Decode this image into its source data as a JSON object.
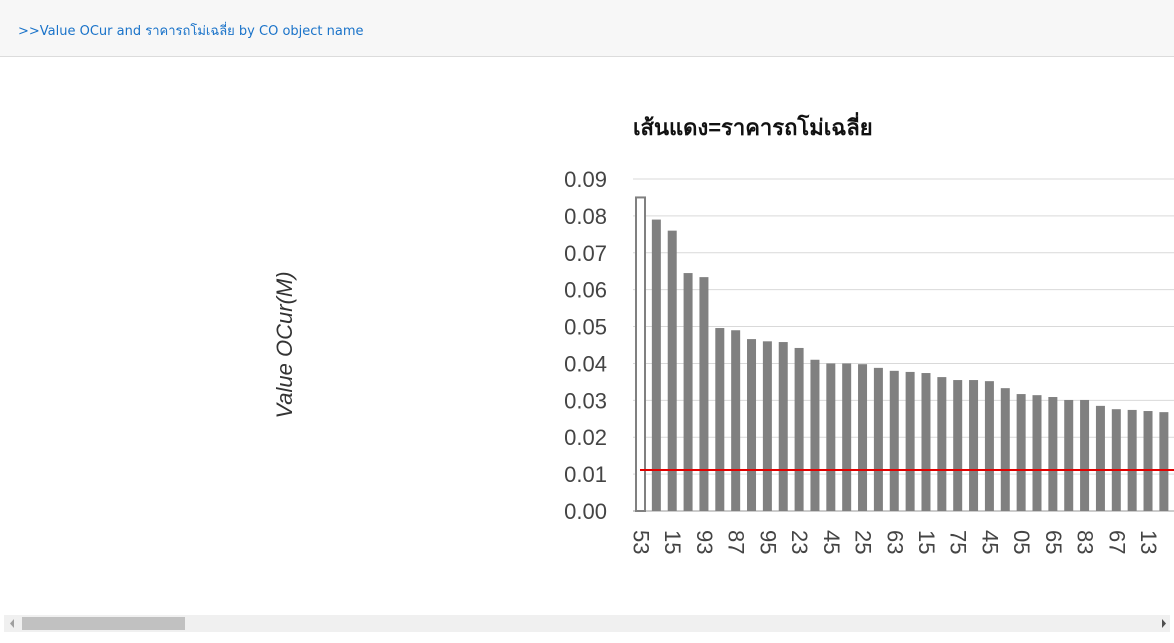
{
  "header": {
    "link": ">>Value OCur and ราคารถโม่เฉลี่ย by CO object name"
  },
  "chart_data": {
    "type": "bar",
    "title": "เส้นแดง=ราคารถโม่เฉลี่ย",
    "y_label": "Value OCur(M)",
    "categories": [
      "53",
      null,
      "15",
      null,
      "93",
      null,
      "87",
      null,
      "95",
      null,
      "23",
      null,
      "45",
      null,
      "25",
      null,
      "63",
      null,
      "15",
      null,
      "75",
      null,
      "45",
      null,
      "05",
      null,
      "65",
      null,
      "83",
      null,
      "67",
      null,
      "13",
      null,
      null
    ],
    "values": [
      0.085,
      0.079,
      0.076,
      0.0645,
      0.0634,
      0.0496,
      0.049,
      0.0466,
      0.046,
      0.0458,
      0.0442,
      0.041,
      0.04,
      0.04,
      0.0398,
      0.0388,
      0.038,
      0.0377,
      0.0374,
      0.0363,
      0.0355,
      0.0355,
      0.0352,
      0.0333,
      0.0317,
      0.0314,
      0.0309,
      0.0301,
      0.0301,
      0.0285,
      0.0276,
      0.0274,
      0.0271,
      0.0268,
      0.0268
    ],
    "color": "#808080",
    "selected_index": 0,
    "reference_line": {
      "value": 0.0111,
      "color": "#e00000"
    },
    "ylim": [
      0,
      0.09
    ],
    "yticks": [
      {
        "value": 0,
        "label": "0.00"
      },
      {
        "value": 0.01,
        "label": "0.01"
      },
      {
        "value": 0.02,
        "label": "0.02"
      },
      {
        "value": 0.03,
        "label": "0.03"
      },
      {
        "value": 0.04,
        "label": "0.04"
      },
      {
        "value": 0.05,
        "label": "0.05"
      },
      {
        "value": 0.06,
        "label": "0.06"
      },
      {
        "value": 0.07,
        "label": "0.07"
      },
      {
        "value": 0.08,
        "label": "0.08"
      },
      {
        "value": 0.09,
        "label": "0.09"
      }
    ],
    "grid": true
  }
}
